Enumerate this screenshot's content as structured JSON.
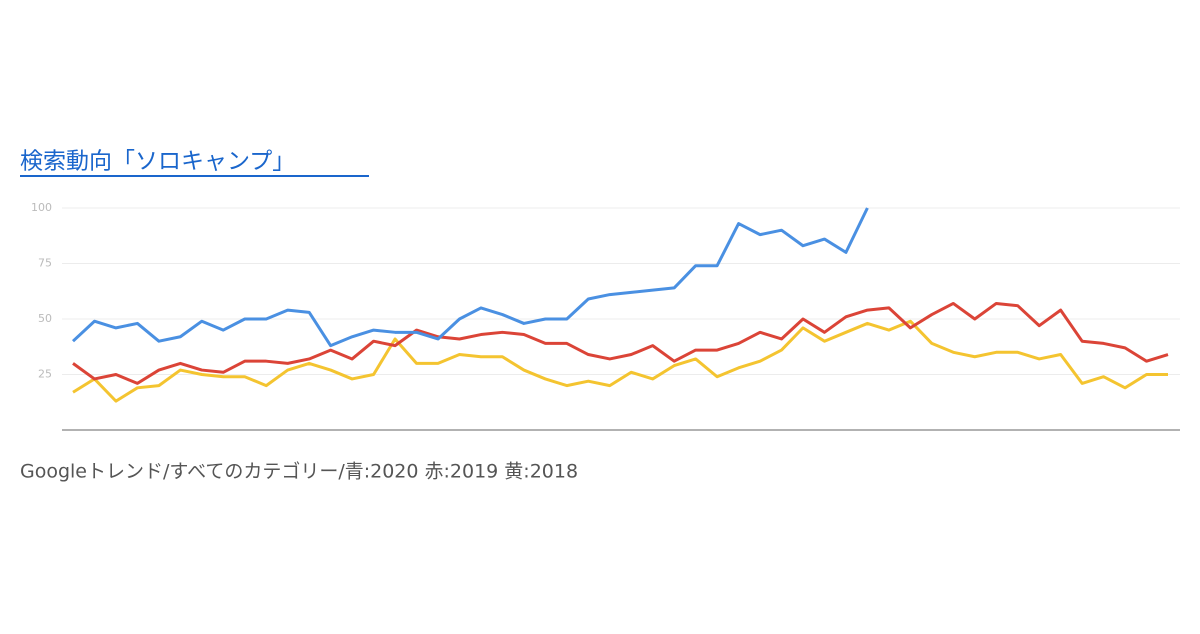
{
  "chart_data": {
    "type": "line",
    "title": "検索動向「ソロキャンプ」",
    "caption": "Googleトレンド/すべてのカテゴリー/青:2020 赤:2019 黄:2018",
    "categories": [
      null,
      null,
      null,
      null,
      null,
      null,
      null,
      null,
      null,
      null,
      null,
      null,
      null,
      null,
      null,
      null,
      null,
      null,
      null,
      null,
      null,
      null,
      null,
      null,
      null,
      null,
      null,
      null,
      null,
      null,
      null,
      null,
      null,
      null,
      null,
      null,
      null,
      null,
      null,
      null,
      null,
      null,
      null,
      null,
      null,
      null,
      null,
      null,
      null,
      null,
      null,
      null
    ],
    "series": [
      {
        "color": "#4a90e2",
        "values": [
          40,
          49,
          46,
          48,
          40,
          42,
          49,
          45,
          50,
          50,
          54,
          53,
          38,
          42,
          45,
          44,
          44,
          41,
          50,
          55,
          52,
          48,
          50,
          50,
          59,
          61,
          62,
          63,
          64,
          74,
          74,
          93,
          88,
          90,
          83,
          86,
          80,
          100,
          null,
          null,
          null,
          null,
          null,
          null,
          null,
          null,
          null,
          null,
          null,
          null,
          null,
          null
        ]
      },
      {
        "color": "#db4437",
        "values": [
          30,
          23,
          25,
          21,
          27,
          30,
          27,
          26,
          31,
          31,
          30,
          32,
          36,
          32,
          40,
          38,
          45,
          42,
          41,
          43,
          44,
          43,
          39,
          39,
          34,
          32,
          34,
          38,
          31,
          36,
          36,
          39,
          44,
          41,
          50,
          44,
          51,
          54,
          55,
          46,
          52,
          57,
          50,
          57,
          56,
          47,
          54,
          40,
          39,
          37,
          31,
          34
        ]
      },
      {
        "color": "#f4c430",
        "values": [
          17,
          23,
          13,
          19,
          20,
          27,
          25,
          24,
          24,
          20,
          27,
          30,
          27,
          23,
          25,
          41,
          30,
          30,
          34,
          33,
          33,
          27,
          23,
          20,
          22,
          20,
          26,
          23,
          29,
          32,
          24,
          28,
          31,
          36,
          46,
          40,
          44,
          48,
          45,
          49,
          39,
          35,
          33,
          35,
          35,
          32,
          34,
          21,
          24,
          19,
          25,
          25
        ]
      }
    ],
    "ylim": [
      0,
      100
    ],
    "yticks": [
      25,
      50,
      75,
      100
    ],
    "grid": true
  }
}
